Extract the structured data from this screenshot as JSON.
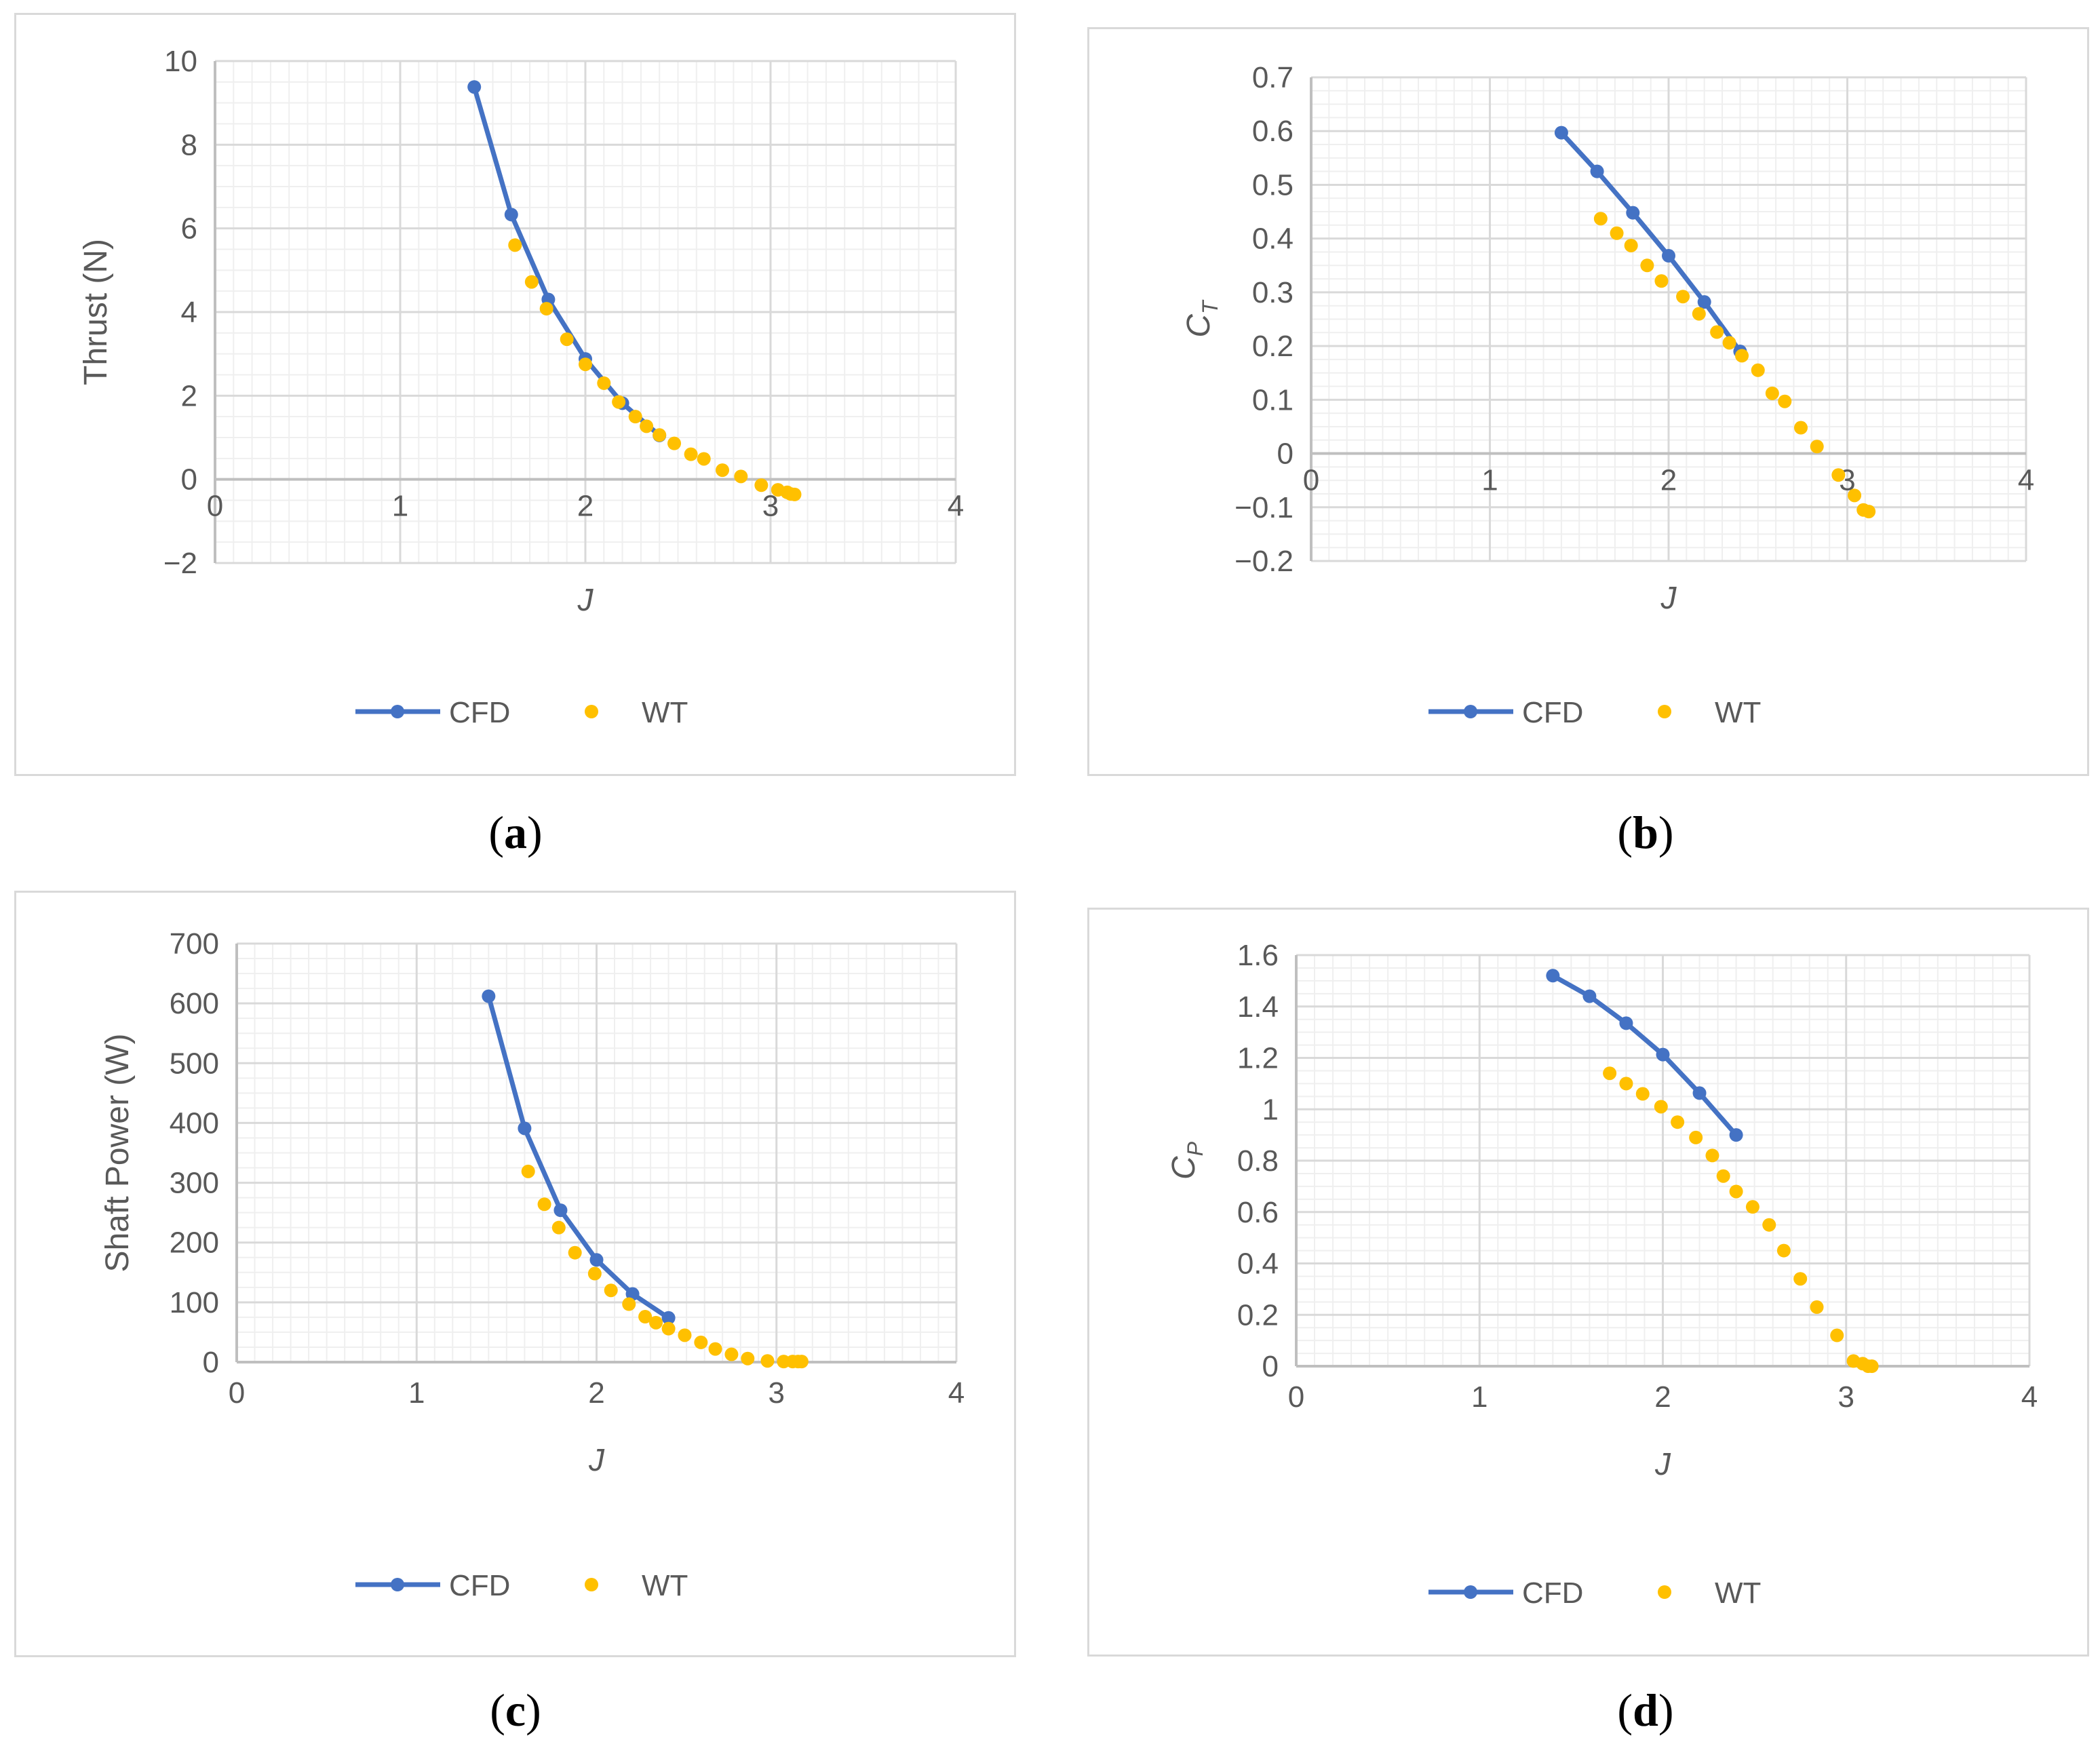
{
  "colors": {
    "cfd": "#4472C4",
    "wt": "#FFC000",
    "axis": "#bfbfbf",
    "major_grid": "#d9d9d9",
    "minor_grid": "#efefef",
    "text": "#595959"
  },
  "legend": {
    "cfd": "CFD",
    "wt": "WT"
  },
  "chart_data": [
    {
      "id": "a",
      "caption": "a",
      "type": "line+scatter",
      "title": "",
      "xlabel": "J",
      "ylabel": "Thrust (N)",
      "xlim": [
        0,
        4
      ],
      "ylim": [
        -2,
        10
      ],
      "xticks": [
        "0",
        "1",
        "2",
        "3",
        "4"
      ],
      "yticks": [
        "−2",
        "0",
        "2",
        "4",
        "6",
        "8",
        "10"
      ],
      "x_labels_at_zero": true,
      "legend_position": "bottom",
      "series": [
        {
          "name": "CFD",
          "kind": "line-markers",
          "x": [
            1.4,
            1.6,
            1.8,
            2.0,
            2.2,
            2.4
          ],
          "y": [
            9.38,
            6.33,
            4.3,
            2.88,
            1.82,
            1.05
          ]
        },
        {
          "name": "WT",
          "kind": "markers",
          "x": [
            1.62,
            1.71,
            1.79,
            1.9,
            2.0,
            2.1,
            2.18,
            2.27,
            2.33,
            2.4,
            2.48,
            2.57,
            2.64,
            2.74,
            2.84,
            2.95,
            3.04,
            3.09,
            3.11,
            3.13
          ],
          "y": [
            5.6,
            4.72,
            4.08,
            3.35,
            2.75,
            2.3,
            1.85,
            1.5,
            1.27,
            1.06,
            0.86,
            0.6,
            0.49,
            0.22,
            0.07,
            -0.14,
            -0.25,
            -0.31,
            -0.35,
            -0.36
          ]
        }
      ]
    },
    {
      "id": "b",
      "caption": "b",
      "type": "line+scatter",
      "title": "",
      "xlabel": "J",
      "ylabel": "C_T",
      "ylabel_main": "C",
      "ylabel_sub": "T",
      "xlim": [
        0,
        4
      ],
      "ylim": [
        -0.2,
        0.7
      ],
      "xticks": [
        "0",
        "1",
        "2",
        "3",
        "4"
      ],
      "yticks": [
        "−0.2",
        "−0.1",
        "0",
        "0.1",
        "0.2",
        "0.3",
        "0.4",
        "0.5",
        "0.6",
        "0.7"
      ],
      "x_labels_at_zero": true,
      "legend_position": "bottom",
      "series": [
        {
          "name": "CFD",
          "kind": "line-markers",
          "x": [
            1.4,
            1.6,
            1.8,
            2.0,
            2.2,
            2.4
          ],
          "y": [
            0.597,
            0.525,
            0.448,
            0.368,
            0.282,
            0.19
          ]
        },
        {
          "name": "WT",
          "kind": "markers",
          "x": [
            1.62,
            1.71,
            1.79,
            1.88,
            1.96,
            2.08,
            2.17,
            2.27,
            2.34,
            2.41,
            2.5,
            2.58,
            2.65,
            2.74,
            2.83,
            2.95,
            3.04,
            3.09,
            3.12
          ],
          "y": [
            0.437,
            0.41,
            0.387,
            0.35,
            0.321,
            0.292,
            0.26,
            0.226,
            0.206,
            0.182,
            0.155,
            0.112,
            0.097,
            0.048,
            0.013,
            -0.04,
            -0.078,
            -0.105,
            -0.108
          ]
        }
      ]
    },
    {
      "id": "c",
      "caption": "c",
      "type": "line+scatter",
      "title": "",
      "xlabel": "J",
      "ylabel": "Shaft Power (W)",
      "xlim": [
        0,
        4
      ],
      "ylim": [
        0,
        700
      ],
      "xticks": [
        "0",
        "1",
        "2",
        "3",
        "4"
      ],
      "yticks": [
        "0",
        "100",
        "200",
        "300",
        "400",
        "500",
        "600",
        "700"
      ],
      "x_labels_at_zero": false,
      "legend_position": "bottom",
      "series": [
        {
          "name": "CFD",
          "kind": "line-markers",
          "x": [
            1.4,
            1.6,
            1.8,
            2.0,
            2.2,
            2.4
          ],
          "y": [
            612,
            391,
            254,
            171,
            114,
            74
          ]
        },
        {
          "name": "WT",
          "kind": "markers",
          "x": [
            1.62,
            1.71,
            1.79,
            1.88,
            1.99,
            2.08,
            2.18,
            2.27,
            2.33,
            2.4,
            2.49,
            2.58,
            2.66,
            2.75,
            2.84,
            2.95,
            3.04,
            3.09,
            3.12,
            3.14
          ],
          "y": [
            319,
            264,
            225,
            183,
            148,
            120,
            97,
            76,
            66,
            56,
            45,
            33,
            22,
            13,
            6,
            2,
            1,
            1,
            1,
            1
          ]
        }
      ]
    },
    {
      "id": "d",
      "caption": "d",
      "type": "line+scatter",
      "title": "",
      "xlabel": "J",
      "ylabel": "C_P",
      "ylabel_main": "C",
      "ylabel_sub": "P",
      "xlim": [
        0,
        4
      ],
      "ylim": [
        0,
        1.6
      ],
      "xticks": [
        "0",
        "1",
        "2",
        "3",
        "4"
      ],
      "yticks": [
        "0",
        "0.2",
        "0.4",
        "0.6",
        "0.8",
        "1",
        "1.2",
        "1.4",
        "1.6"
      ],
      "x_labels_at_zero": false,
      "legend_position": "bottom",
      "series": [
        {
          "name": "CFD",
          "kind": "line-markers",
          "x": [
            1.4,
            1.6,
            1.8,
            2.0,
            2.2,
            2.4
          ],
          "y": [
            1.52,
            1.44,
            1.335,
            1.213,
            1.063,
            0.9
          ]
        },
        {
          "name": "WT",
          "kind": "markers",
          "x": [
            1.71,
            1.8,
            1.89,
            1.99,
            2.08,
            2.18,
            2.27,
            2.33,
            2.4,
            2.49,
            2.58,
            2.66,
            2.75,
            2.84,
            2.95,
            3.04,
            3.09,
            3.12,
            3.14
          ],
          "y": [
            1.14,
            1.1,
            1.06,
            1.01,
            0.95,
            0.89,
            0.82,
            0.74,
            0.68,
            0.62,
            0.55,
            0.45,
            0.34,
            0.23,
            0.12,
            0.02,
            0.01,
            0.0,
            0.0
          ]
        }
      ]
    }
  ]
}
